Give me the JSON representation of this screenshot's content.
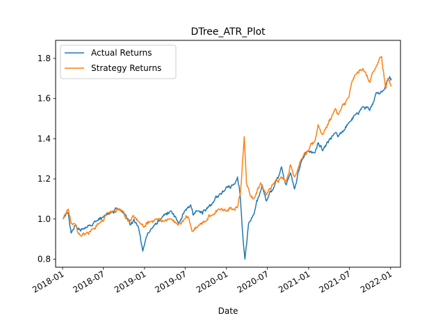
{
  "chart_data": {
    "type": "line",
    "title": "DTree_ATR_Plot",
    "xlabel": "Date",
    "ylabel": "",
    "xlim": [
      "2017-12-01",
      "2022-02-14"
    ],
    "ylim": [
      0.76,
      1.89
    ],
    "yticks": [
      0.8,
      1.0,
      1.2,
      1.4,
      1.6,
      1.8
    ],
    "xticks": [
      "2018-01",
      "2018-07",
      "2019-01",
      "2019-07",
      "2020-01",
      "2020-07",
      "2021-01",
      "2021-07",
      "2022-01"
    ],
    "grid": false,
    "legend_position": "top-left",
    "series": [
      {
        "name": "Actual Returns",
        "color": "#1f77b4",
        "points": [
          [
            "2018-01-02",
            1.0
          ],
          [
            "2018-01-26",
            1.03
          ],
          [
            "2018-02-08",
            0.93
          ],
          [
            "2018-02-28",
            0.97
          ],
          [
            "2018-03-22",
            0.94
          ],
          [
            "2018-04-02",
            0.95
          ],
          [
            "2018-04-30",
            0.97
          ],
          [
            "2018-06-01",
            0.99
          ],
          [
            "2018-07-02",
            1.01
          ],
          [
            "2018-08-01",
            1.03
          ],
          [
            "2018-09-04",
            1.05
          ],
          [
            "2018-09-20",
            1.04
          ],
          [
            "2018-10-10",
            1.02
          ],
          [
            "2018-10-29",
            0.97
          ],
          [
            "2018-11-15",
            1.0
          ],
          [
            "2018-12-05",
            0.96
          ],
          [
            "2018-12-24",
            0.84
          ],
          [
            "2019-01-15",
            0.93
          ],
          [
            "2019-02-15",
            0.97
          ],
          [
            "2019-03-15",
            1.0
          ],
          [
            "2019-04-30",
            1.04
          ],
          [
            "2019-05-31",
            0.98
          ],
          [
            "2019-06-28",
            1.04
          ],
          [
            "2019-07-26",
            1.07
          ],
          [
            "2019-08-05",
            1.02
          ],
          [
            "2019-08-30",
            1.04
          ],
          [
            "2019-09-30",
            1.04
          ],
          [
            "2019-10-31",
            1.08
          ],
          [
            "2019-11-29",
            1.12
          ],
          [
            "2019-12-31",
            1.16
          ],
          [
            "2020-01-31",
            1.17
          ],
          [
            "2020-02-19",
            1.21
          ],
          [
            "2020-03-02",
            1.12
          ],
          [
            "2020-03-12",
            0.94
          ],
          [
            "2020-03-23",
            0.8
          ],
          [
            "2020-04-09",
            0.98
          ],
          [
            "2020-05-01",
            1.02
          ],
          [
            "2020-06-08",
            1.17
          ],
          [
            "2020-06-26",
            1.09
          ],
          [
            "2020-07-31",
            1.16
          ],
          [
            "2020-09-02",
            1.26
          ],
          [
            "2020-09-23",
            1.17
          ],
          [
            "2020-10-12",
            1.23
          ],
          [
            "2020-10-30",
            1.15
          ],
          [
            "2020-11-30",
            1.29
          ],
          [
            "2020-12-31",
            1.34
          ],
          [
            "2021-01-29",
            1.33
          ],
          [
            "2021-02-12",
            1.38
          ],
          [
            "2021-03-04",
            1.34
          ],
          [
            "2021-04-30",
            1.43
          ],
          [
            "2021-05-12",
            1.41
          ],
          [
            "2021-06-30",
            1.48
          ],
          [
            "2021-07-30",
            1.52
          ],
          [
            "2021-08-31",
            1.56
          ],
          [
            "2021-09-30",
            1.54
          ],
          [
            "2021-10-29",
            1.63
          ],
          [
            "2021-11-30",
            1.64
          ],
          [
            "2021-12-10",
            1.67
          ],
          [
            "2021-12-28",
            1.71
          ],
          [
            "2022-01-04",
            1.7
          ]
        ]
      },
      {
        "name": "Strategy Returns",
        "color": "#ff7f0e",
        "points": [
          [
            "2018-01-02",
            1.0
          ],
          [
            "2018-01-26",
            1.05
          ],
          [
            "2018-02-08",
            0.98
          ],
          [
            "2018-02-28",
            0.97
          ],
          [
            "2018-03-22",
            0.92
          ],
          [
            "2018-04-16",
            0.93
          ],
          [
            "2018-05-15",
            0.95
          ],
          [
            "2018-06-15",
            0.98
          ],
          [
            "2018-07-16",
            1.02
          ],
          [
            "2018-08-15",
            1.04
          ],
          [
            "2018-09-14",
            1.05
          ],
          [
            "2018-09-28",
            1.04
          ],
          [
            "2018-10-15",
            1.0
          ],
          [
            "2018-11-01",
            0.99
          ],
          [
            "2018-11-20",
            1.01
          ],
          [
            "2018-12-10",
            0.98
          ],
          [
            "2018-12-27",
            0.96
          ],
          [
            "2019-01-31",
            0.99
          ],
          [
            "2019-02-28",
            1.0
          ],
          [
            "2019-03-29",
            0.99
          ],
          [
            "2019-04-30",
            1.0
          ],
          [
            "2019-05-31",
            0.97
          ],
          [
            "2019-06-28",
            1.0
          ],
          [
            "2019-07-15",
            1.01
          ],
          [
            "2019-07-31",
            0.94
          ],
          [
            "2019-08-30",
            0.97
          ],
          [
            "2019-09-30",
            0.99
          ],
          [
            "2019-10-31",
            1.02
          ],
          [
            "2019-11-29",
            1.05
          ],
          [
            "2019-12-31",
            1.04
          ],
          [
            "2020-01-31",
            1.05
          ],
          [
            "2020-02-19",
            1.06
          ],
          [
            "2020-03-02",
            1.12
          ],
          [
            "2020-03-12",
            1.28
          ],
          [
            "2020-03-20",
            1.41
          ],
          [
            "2020-03-30",
            1.18
          ],
          [
            "2020-04-15",
            1.12
          ],
          [
            "2020-05-01",
            1.1
          ],
          [
            "2020-06-01",
            1.18
          ],
          [
            "2020-06-26",
            1.12
          ],
          [
            "2020-07-31",
            1.18
          ],
          [
            "2020-08-31",
            1.21
          ],
          [
            "2020-09-23",
            1.19
          ],
          [
            "2020-10-12",
            1.27
          ],
          [
            "2020-10-30",
            1.21
          ],
          [
            "2020-11-30",
            1.3
          ],
          [
            "2020-12-31",
            1.34
          ],
          [
            "2021-01-29",
            1.39
          ],
          [
            "2021-02-12",
            1.47
          ],
          [
            "2021-03-04",
            1.42
          ],
          [
            "2021-04-30",
            1.55
          ],
          [
            "2021-05-12",
            1.52
          ],
          [
            "2021-06-30",
            1.61
          ],
          [
            "2021-07-15",
            1.69
          ],
          [
            "2021-07-30",
            1.72
          ],
          [
            "2021-08-31",
            1.75
          ],
          [
            "2021-09-30",
            1.68
          ],
          [
            "2021-10-29",
            1.76
          ],
          [
            "2021-11-22",
            1.81
          ],
          [
            "2021-12-01",
            1.73
          ],
          [
            "2021-12-10",
            1.65
          ],
          [
            "2021-12-20",
            1.7
          ],
          [
            "2022-01-04",
            1.66
          ]
        ]
      }
    ]
  }
}
